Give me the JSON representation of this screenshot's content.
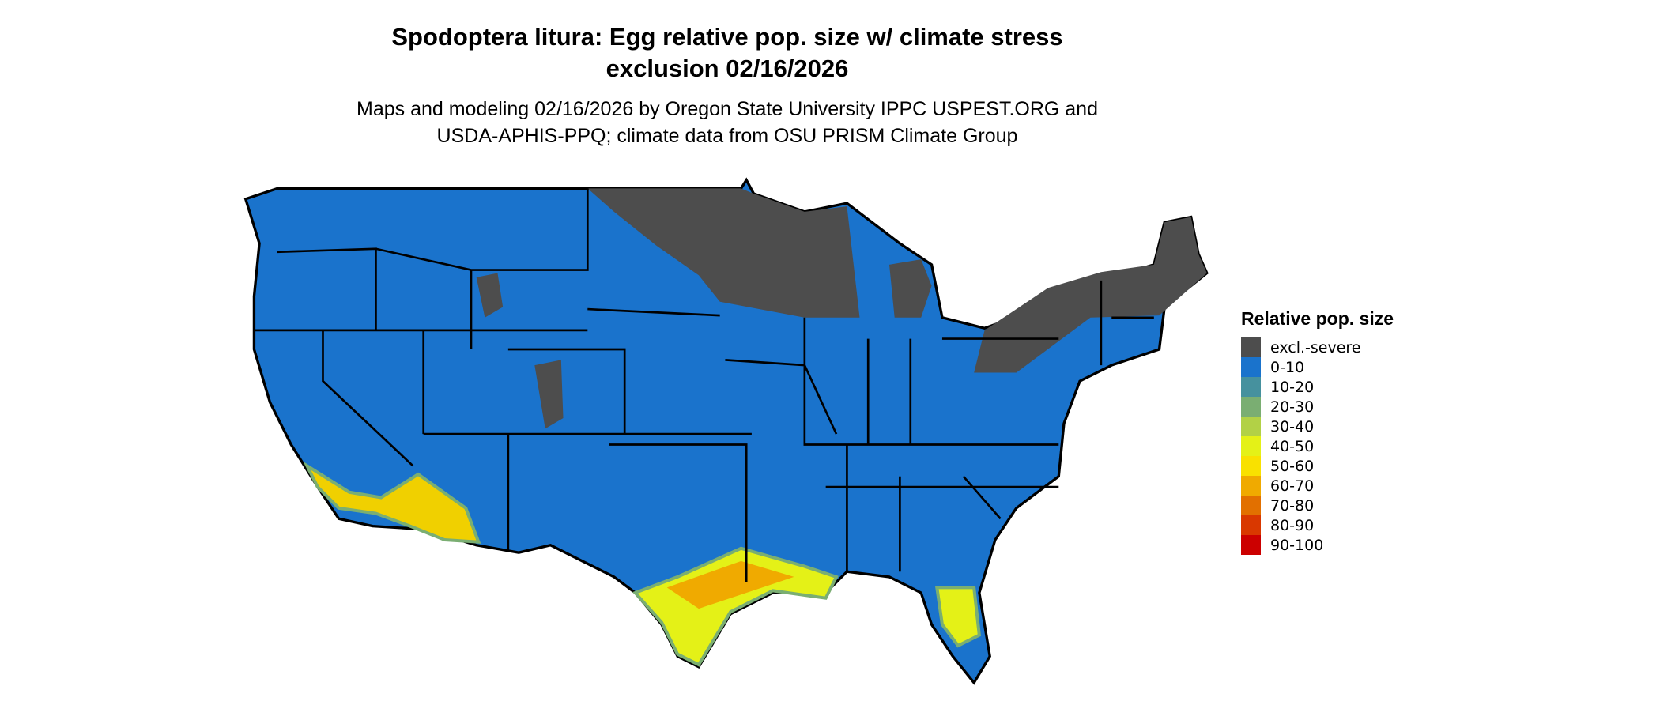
{
  "title": {
    "line1": "Spodoptera litura: Egg relative pop. size w/ climate stress",
    "line2": "exclusion 02/16/2026"
  },
  "subtitle": {
    "line1": "Maps and modeling 02/16/2026 by Oregon State University IPPC USPEST.ORG and",
    "line2": "USDA-APHIS-PPQ; climate data from OSU PRISM Climate Group"
  },
  "legend": {
    "title": "Relative pop. size",
    "items": [
      {
        "label": "excl.-severe",
        "color": "#4d4d4d"
      },
      {
        "label": "0-10",
        "color": "#1a73cc"
      },
      {
        "label": "10-20",
        "color": "#46919e"
      },
      {
        "label": "20-30",
        "color": "#7aae72"
      },
      {
        "label": "30-40",
        "color": "#b2d146"
      },
      {
        "label": "40-50",
        "color": "#e4f117"
      },
      {
        "label": "50-60",
        "color": "#f9e100"
      },
      {
        "label": "60-70",
        "color": "#f0aa00"
      },
      {
        "label": "70-80",
        "color": "#e27000"
      },
      {
        "label": "80-90",
        "color": "#d93800"
      },
      {
        "label": "90-100",
        "color": "#cc0000"
      }
    ]
  }
}
